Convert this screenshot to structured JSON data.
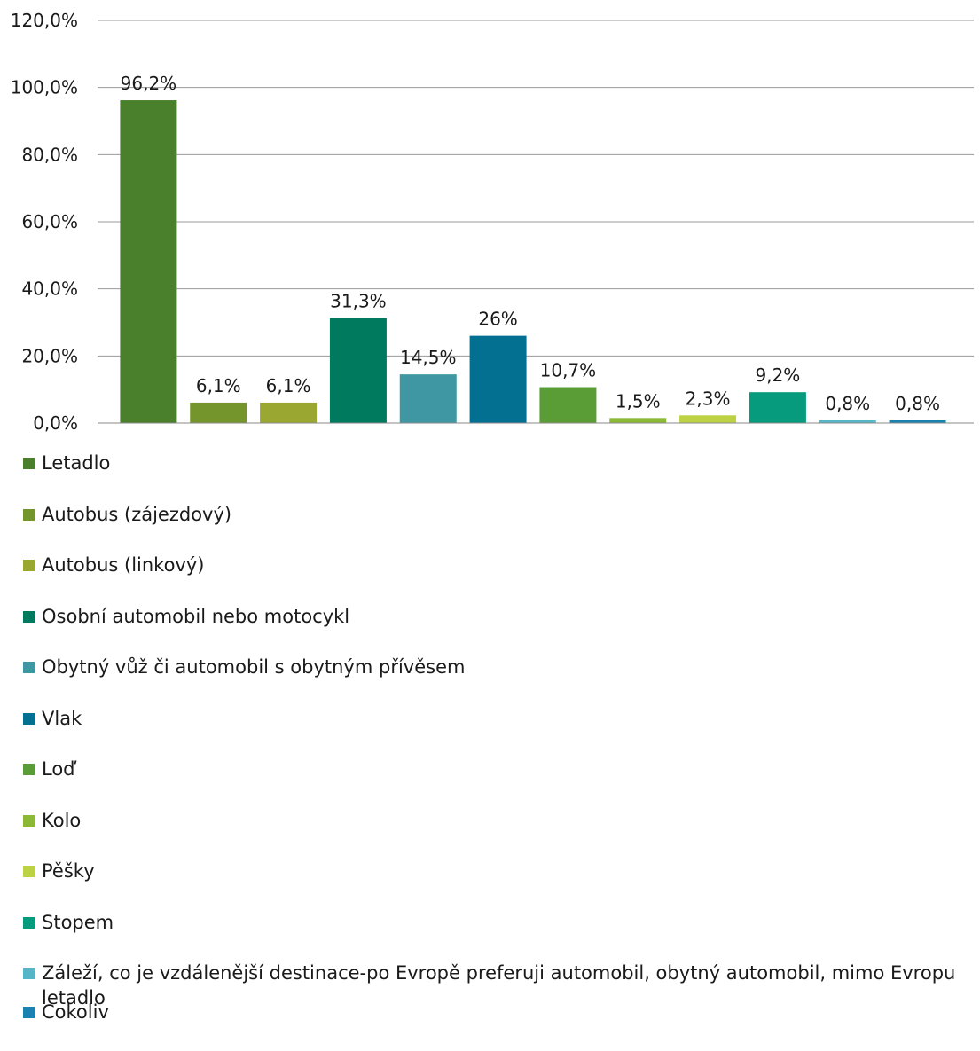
{
  "chart_data": {
    "type": "bar",
    "categories": [
      "Letadlo",
      "Autobus (zájezdový)",
      "Autobus (linkový)",
      "Osobní automobil nebo motocykl",
      "Obytný vůž či automobil s obytným přívěsem",
      "Vlak",
      "Loď",
      "Kolo",
      "Pěšky",
      "Stopem",
      "Záleží, co je vzdálenější destinace-po Evropě preferuji automobil, obytný automobil, mimo Evropu letadlo",
      "Cokoliv"
    ],
    "values": [
      96.2,
      6.1,
      6.1,
      31.3,
      14.5,
      26,
      10.7,
      1.5,
      2.3,
      9.2,
      0.8,
      0.8
    ],
    "data_labels": [
      "96,2%",
      "6,1%",
      "6,1%",
      "31,3%",
      "14,5%",
      "26%",
      "10,7%",
      "1,5%",
      "2,3%",
      "9,2%",
      "0,8%",
      "0,8%"
    ],
    "colors": [
      "#4a7f2c",
      "#74952c",
      "#9aa832",
      "#007a5e",
      "#3f97a4",
      "#047091",
      "#5a9c36",
      "#8bb936",
      "#bcd242",
      "#059b7c",
      "#56b6c7",
      "#1a81b0"
    ],
    "y_ticks": [
      "0,0%",
      "20,0%",
      "40,0%",
      "60,0%",
      "80,0%",
      "100,0%",
      "120,0%"
    ],
    "ylim": [
      0,
      120
    ],
    "grid": true,
    "legend_position": "bottom",
    "title": "",
    "xlabel": "",
    "ylabel": ""
  }
}
